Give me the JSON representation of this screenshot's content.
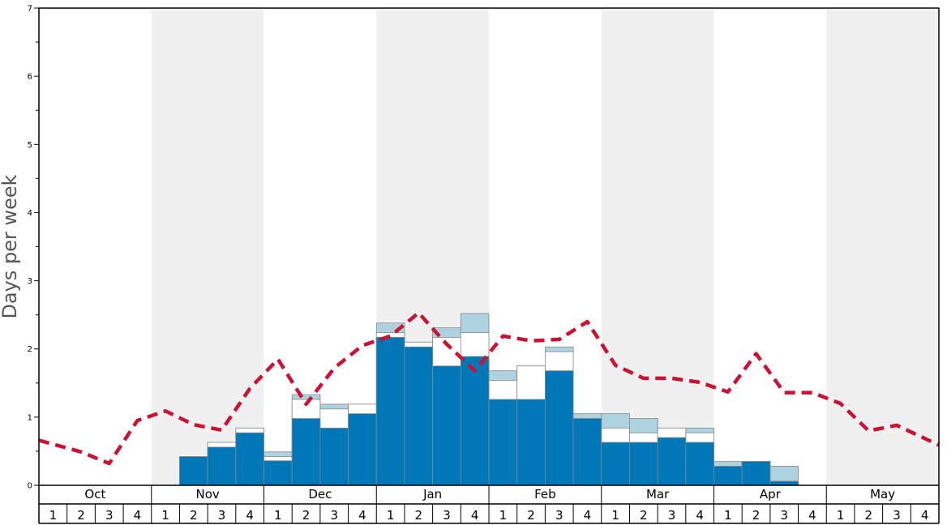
{
  "chart_data": {
    "type": "bar",
    "ylabel": "Days per week",
    "ylim": [
      0,
      7
    ],
    "y_ticks": [
      "0",
      "1",
      "2",
      "3",
      "4",
      "5",
      "6",
      "7"
    ],
    "months": [
      "Oct",
      "Nov",
      "Dec",
      "Jan",
      "Feb",
      "Mar",
      "Apr",
      "May"
    ],
    "weeks": [
      "1",
      "2",
      "3",
      "4"
    ],
    "series": [
      {
        "values": [
          null,
          null,
          null,
          null,
          null,
          0.42,
          0.56,
          0.77,
          0.36,
          0.98,
          0.84,
          1.05,
          2.17,
          2.03,
          1.75,
          1.89,
          1.26,
          1.26,
          1.68,
          0.98,
          0.63,
          0.63,
          0.7,
          0.63,
          0.28,
          0.35,
          0.06,
          null,
          null,
          null,
          null,
          null
        ]
      },
      {
        "values": [
          null,
          null,
          null,
          null,
          null,
          0.42,
          0.63,
          0.84,
          0.42,
          1.26,
          1.12,
          1.19,
          2.24,
          2.1,
          2.17,
          2.24,
          1.54,
          1.75,
          1.96,
          0.98,
          0.84,
          0.77,
          0.84,
          0.77,
          0.28,
          0.35,
          0.06,
          null,
          null,
          null,
          null,
          null
        ]
      },
      {
        "values": [
          null,
          null,
          null,
          null,
          null,
          0.42,
          0.63,
          0.84,
          0.49,
          1.33,
          1.19,
          1.19,
          2.38,
          2.1,
          2.31,
          2.52,
          1.68,
          1.75,
          2.03,
          1.05,
          1.05,
          0.98,
          0.84,
          0.84,
          0.35,
          0.35,
          0.28,
          null,
          null,
          null,
          null,
          null
        ]
      },
      {
        "type": "line",
        "values": [
          0.66,
          0.49,
          0.32,
          0.95,
          1.09,
          0.89,
          0.81,
          1.42,
          1.85,
          1.19,
          1.72,
          2.05,
          2.19,
          2.53,
          2.07,
          1.68,
          2.19,
          2.12,
          2.14,
          2.4,
          1.76,
          1.57,
          1.57,
          1.51,
          1.37,
          1.93,
          1.36,
          1.36,
          1.2,
          0.8,
          0.88,
          0.59
        ]
      }
    ],
    "colors": {
      "bar_main": "#0077b6",
      "bar_white": "#ffffff",
      "bar_light": "#aed3e0",
      "bar_stroke": "#888888",
      "line": "#cc1133",
      "band": "#f0f0f0",
      "frame": "#000000"
    }
  }
}
